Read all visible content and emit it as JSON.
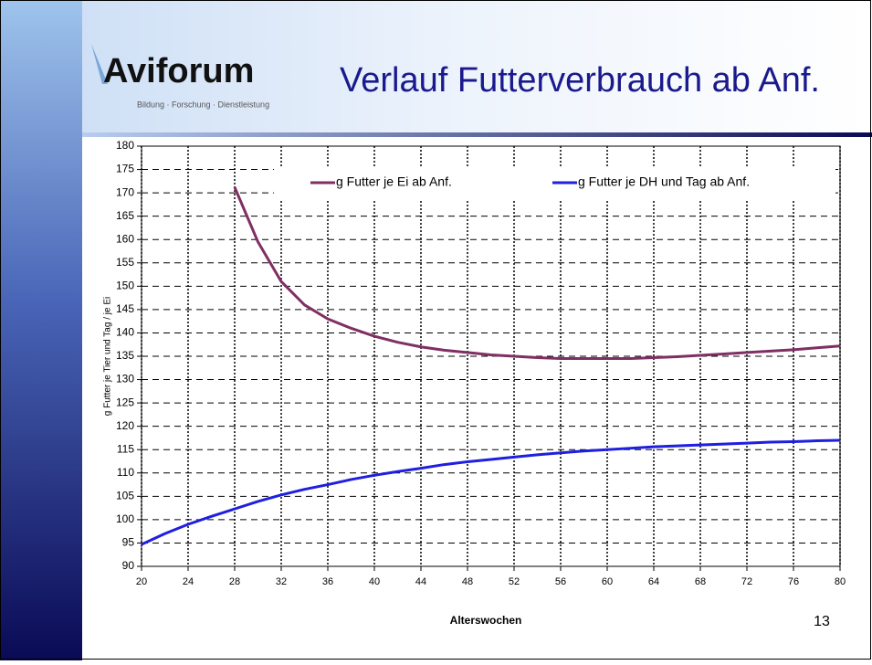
{
  "logo": {
    "name": "Aviforum",
    "tagline": "Bildung · Forschung · Dienstleistung"
  },
  "page_number": "13",
  "chart_data": {
    "type": "line",
    "title": "Verlauf Futterverbrauch ab Anf.",
    "x_label": "Alterswochen",
    "y_label": "g Futter je Tier und Tag / je Ei",
    "x": [
      20,
      22,
      24,
      26,
      28,
      30,
      32,
      34,
      36,
      38,
      40,
      42,
      44,
      46,
      48,
      50,
      52,
      54,
      56,
      58,
      60,
      62,
      64,
      66,
      68,
      70,
      72,
      74,
      76,
      78,
      80
    ],
    "series": [
      {
        "name": "g Futter je Ei ab Anf.",
        "color": "#7f2f63",
        "values": [
          null,
          null,
          null,
          null,
          171.2,
          159.5,
          151,
          146,
          143,
          141,
          139.3,
          138,
          137,
          136.3,
          135.8,
          135.3,
          135,
          134.7,
          134.5,
          134.5,
          134.5,
          134.5,
          134.7,
          134.9,
          135.2,
          135.5,
          135.8,
          136.1,
          136.4,
          136.8,
          137.2
        ]
      },
      {
        "name": "g Futter je DH und Tag ab Anf.",
        "color": "#1f1fe0",
        "values": [
          94.7,
          97,
          99,
          100.7,
          102.3,
          103.9,
          105.3,
          106.5,
          107.5,
          108.6,
          109.5,
          110.3,
          111,
          111.8,
          112.4,
          112.9,
          113.4,
          113.9,
          114.3,
          114.7,
          115,
          115.3,
          115.6,
          115.8,
          116,
          116.2,
          116.4,
          116.6,
          116.7,
          116.9,
          117
        ]
      }
    ],
    "xlim": [
      20,
      80
    ],
    "xticks": [
      20,
      24,
      28,
      32,
      36,
      40,
      44,
      48,
      52,
      56,
      60,
      64,
      68,
      72,
      76,
      80
    ],
    "ylim": [
      90,
      180
    ],
    "yticks": [
      90,
      95,
      100,
      105,
      110,
      115,
      120,
      125,
      130,
      135,
      140,
      145,
      150,
      155,
      160,
      165,
      170,
      175,
      180
    ],
    "grid": true,
    "legend": "top"
  }
}
